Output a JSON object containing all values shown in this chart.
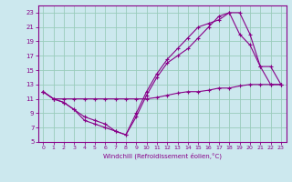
{
  "xlabel": "Windchill (Refroidissement éolien,°C)",
  "bg_color": "#cce8ee",
  "line_color": "#880088",
  "grid_color": "#99ccbb",
  "xlim": [
    -0.5,
    23.5
  ],
  "ylim": [
    5,
    24
  ],
  "xticks": [
    0,
    1,
    2,
    3,
    4,
    5,
    6,
    7,
    8,
    9,
    10,
    11,
    12,
    13,
    14,
    15,
    16,
    17,
    18,
    19,
    20,
    21,
    22,
    23
  ],
  "yticks": [
    5,
    7,
    9,
    11,
    13,
    15,
    17,
    19,
    21,
    23
  ],
  "line1_x": [
    0,
    1,
    2,
    3,
    4,
    5,
    6,
    7,
    8,
    9,
    10,
    11,
    12,
    13,
    14,
    15,
    16,
    17,
    18,
    19,
    20,
    21,
    22,
    23
  ],
  "line1_y": [
    12.0,
    11.0,
    11.0,
    11.0,
    11.0,
    11.0,
    11.0,
    11.0,
    11.0,
    11.0,
    11.0,
    11.2,
    11.5,
    11.8,
    12.0,
    12.0,
    12.2,
    12.5,
    12.5,
    12.8,
    13.0,
    13.0,
    13.0,
    13.0
  ],
  "line2_x": [
    0,
    1,
    2,
    3,
    4,
    5,
    6,
    7,
    8,
    9,
    10,
    11,
    12,
    13,
    14,
    15,
    16,
    17,
    18,
    19,
    20,
    21,
    22,
    23
  ],
  "line2_y": [
    12.0,
    11.0,
    10.5,
    9.5,
    8.5,
    8.0,
    7.5,
    6.5,
    6.0,
    8.5,
    11.5,
    14.0,
    16.0,
    17.0,
    18.0,
    19.5,
    21.0,
    22.5,
    23.0,
    23.0,
    20.0,
    15.5,
    15.5,
    13.0
  ],
  "line3_x": [
    0,
    1,
    2,
    3,
    4,
    5,
    6,
    7,
    8,
    9,
    10,
    11,
    12,
    13,
    14,
    15,
    16,
    17,
    18,
    19,
    20,
    21,
    22,
    23
  ],
  "line3_y": [
    12.0,
    11.0,
    10.5,
    9.5,
    8.0,
    7.5,
    7.0,
    6.5,
    6.0,
    9.0,
    12.0,
    14.5,
    16.5,
    18.0,
    19.5,
    21.0,
    21.5,
    22.0,
    23.0,
    20.0,
    18.5,
    15.5,
    13.0,
    13.0
  ]
}
